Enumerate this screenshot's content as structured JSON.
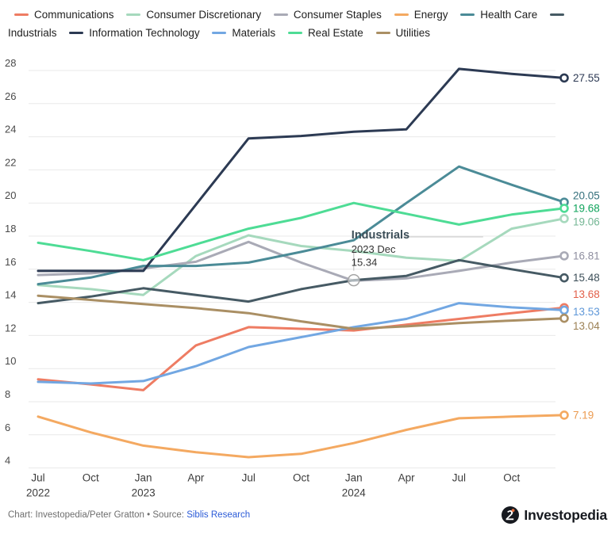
{
  "legend": {
    "items": [
      {
        "label": "Communications",
        "color": "#ee7c63"
      },
      {
        "label": "Consumer Discretionary",
        "color": "#a6d9bd"
      },
      {
        "label": "Consumer Staples",
        "color": "#a9aab6"
      },
      {
        "label": "Energy",
        "color": "#f4a961"
      },
      {
        "label": "Health Care",
        "color": "#4b8b97"
      },
      {
        "label": "Industrials",
        "color": "#465a64"
      },
      {
        "label": "Information Technology",
        "color": "#2c3a53"
      },
      {
        "label": "Materials",
        "color": "#72a7e2"
      },
      {
        "label": "Real Estate",
        "color": "#4edc95"
      },
      {
        "label": "Utilities",
        "color": "#aa8f64"
      }
    ]
  },
  "chart_data": {
    "type": "line",
    "title": "",
    "x": [
      "2022 Jun",
      "2022 Sep",
      "2022 Dec",
      "2023 Mar",
      "2023 Jun",
      "2023 Sep",
      "2023 Dec",
      "2024 Mar",
      "2024 Jun",
      "2024 Sep",
      "2024 Dec"
    ],
    "x_tick_labels": [
      {
        "month": "Jul",
        "year": "2022"
      },
      {
        "month": "Oct",
        "year": ""
      },
      {
        "month": "Jan",
        "year": "2023"
      },
      {
        "month": "Apr",
        "year": ""
      },
      {
        "month": "Jul",
        "year": ""
      },
      {
        "month": "Oct",
        "year": ""
      },
      {
        "month": "Jan",
        "year": "2024"
      },
      {
        "month": "Apr",
        "year": ""
      },
      {
        "month": "Jul",
        "year": ""
      },
      {
        "month": "Oct",
        "year": ""
      }
    ],
    "y_ticks": [
      4,
      6,
      8,
      10,
      12,
      14,
      16,
      18,
      20,
      22,
      24,
      26,
      28
    ],
    "ylim": [
      3.6,
      28.7
    ],
    "grid": "horizontal",
    "legend_position": "top",
    "series": [
      {
        "name": "Communications",
        "color": "#ee7c63",
        "label_color": "#e2604a",
        "values": [
          9.35,
          9.05,
          8.7,
          11.4,
          12.5,
          12.4,
          12.3,
          12.65,
          13.0,
          13.35,
          13.68
        ],
        "end_label": "13.68",
        "end_label_dy": -17
      },
      {
        "name": "Consumer Discretionary",
        "color": "#a6d9bd",
        "label_color": "#74b694",
        "values": [
          15.05,
          14.8,
          14.45,
          16.8,
          18.05,
          17.4,
          17.1,
          16.7,
          16.5,
          18.45,
          19.06
        ],
        "end_label": "19.06",
        "end_label_dy": 4
      },
      {
        "name": "Consumer Staples",
        "color": "#a9aab6",
        "label_color": "#8f8fa0",
        "values": [
          15.65,
          15.75,
          16.05,
          16.45,
          17.65,
          16.4,
          15.3,
          15.45,
          15.9,
          16.4,
          16.81
        ],
        "end_label": "16.81",
        "end_label_dy": 0
      },
      {
        "name": "Energy",
        "color": "#f4a961",
        "label_color": "#eb9a4f",
        "values": [
          7.1,
          6.15,
          5.35,
          4.95,
          4.65,
          4.85,
          5.5,
          6.3,
          7.0,
          7.1,
          7.19
        ],
        "end_label": "7.19",
        "end_label_dy": 0
      },
      {
        "name": "Health Care",
        "color": "#4b8b97",
        "label_color": "#35707c",
        "values": [
          15.1,
          15.5,
          16.2,
          16.2,
          16.4,
          17.05,
          17.75,
          20.0,
          22.2,
          21.1,
          20.05
        ],
        "end_label": "20.05",
        "end_label_dy": -8
      },
      {
        "name": "Industrials",
        "color": "#465a64",
        "label_color": "#3d4f59",
        "values": [
          13.95,
          14.35,
          14.85,
          14.45,
          14.05,
          14.8,
          15.34,
          15.6,
          16.55,
          16.0,
          15.48
        ],
        "end_label": "15.48",
        "end_label_dy": 0
      },
      {
        "name": "Information Technology",
        "color": "#2c3a53",
        "label_color": "#2d3a54",
        "values": [
          15.9,
          15.9,
          15.9,
          19.9,
          23.9,
          24.05,
          24.3,
          24.45,
          28.1,
          27.8,
          27.55
        ],
        "end_label": "27.55",
        "end_label_dy": 0
      },
      {
        "name": "Materials",
        "color": "#72a7e2",
        "label_color": "#5e97d8",
        "values": [
          9.2,
          9.1,
          9.25,
          10.15,
          11.3,
          11.9,
          12.5,
          13.0,
          13.95,
          13.7,
          13.53
        ],
        "end_label": "13.53",
        "end_label_dy": 2
      },
      {
        "name": "Real Estate",
        "color": "#4edc95",
        "label_color": "#10a45c",
        "values": [
          17.6,
          17.1,
          16.55,
          17.5,
          18.45,
          19.1,
          20.0,
          19.35,
          18.7,
          19.3,
          19.68
        ],
        "end_label": "19.68",
        "end_label_dy": 0
      },
      {
        "name": "Utilities",
        "color": "#aa8f64",
        "label_color": "#9c8155",
        "values": [
          14.4,
          14.15,
          13.9,
          13.65,
          13.35,
          12.85,
          12.4,
          12.55,
          12.75,
          12.9,
          13.04
        ],
        "end_label": "13.04",
        "end_label_dy": 10
      }
    ],
    "tooltip": {
      "title": "Industrials",
      "date": "2023 Dec",
      "value": "15.34",
      "series_index": 5,
      "point_index": 6
    }
  },
  "footer": {
    "credit_prefix": "Chart: Investopedia/Peter Gratton • Source: ",
    "source_link": "Siblis Research",
    "brand": "Investopedia"
  }
}
